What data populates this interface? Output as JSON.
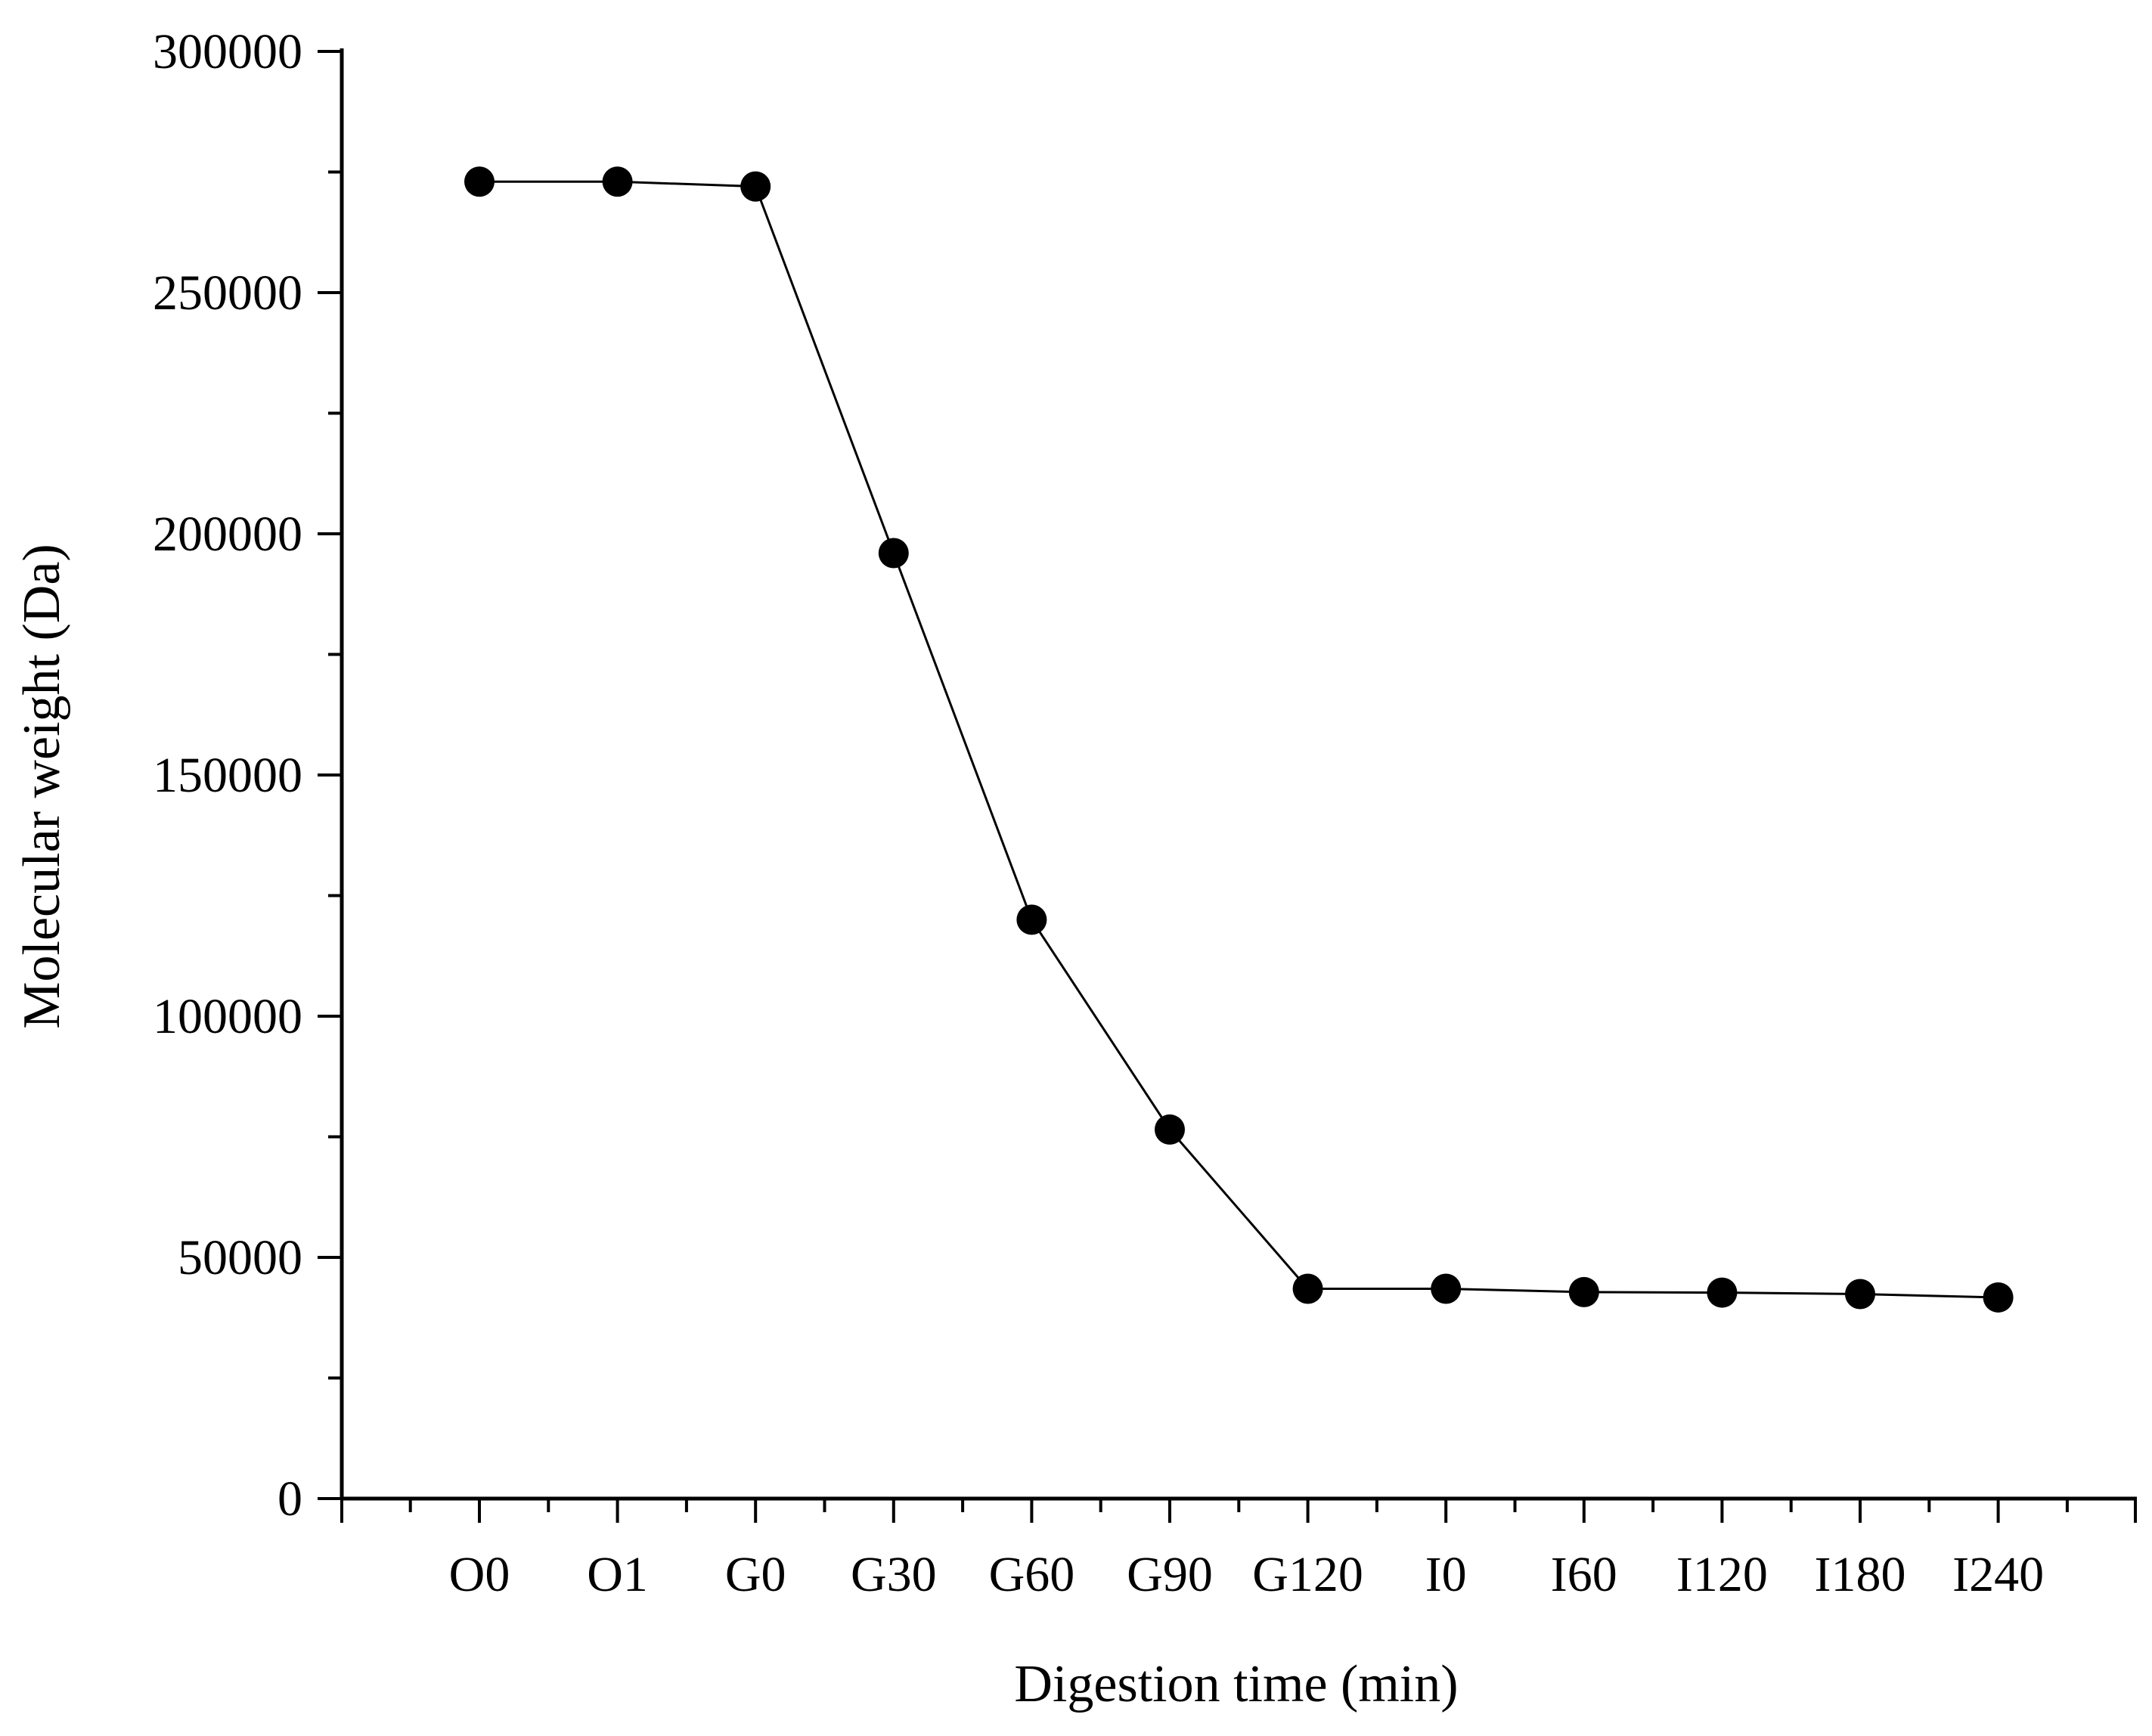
{
  "chart_data": {
    "type": "line",
    "title": "",
    "xlabel": "Digestion time (min)",
    "ylabel": "Molecular weight (Da)",
    "categories": [
      "O0",
      "O1",
      "G0",
      "G30",
      "G60",
      "G90",
      "G120",
      "I0",
      "I60",
      "I120",
      "I180",
      "I240"
    ],
    "series": [
      {
        "values": [
          273000,
          273000,
          272000,
          196000,
          120000,
          76500,
          43500,
          43500,
          42800,
          42700,
          42400,
          41700
        ],
        "color": "#000000",
        "marker": "filled-circle"
      }
    ],
    "ylim": [
      0,
      300000
    ],
    "yticks": [
      "0",
      "50000",
      "100000",
      "150000",
      "200000",
      "250000",
      "300000"
    ],
    "grid": false,
    "legend": "none"
  }
}
